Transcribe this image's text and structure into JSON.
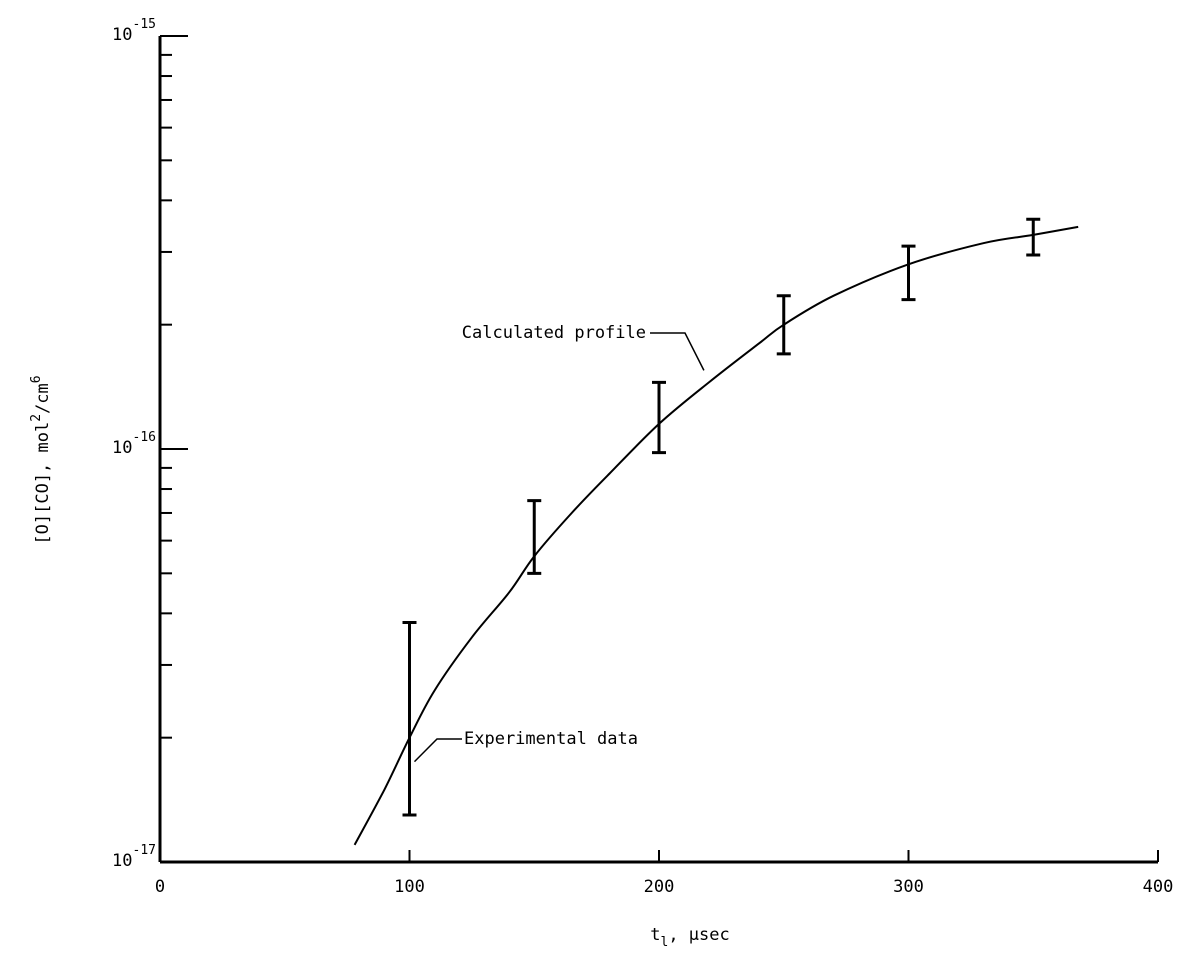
{
  "chart_data": {
    "type": "line",
    "xlabel_main": "t",
    "xlabel_sub": "l",
    "xlabel_rest": ", μsec",
    "ylabel_text": "[O][CO], mol",
    "ylabel_sup1": "2",
    "ylabel_mid": "/cm",
    "ylabel_sup2": "6",
    "xlim": [
      0,
      400
    ],
    "ylim": [
      1e-17,
      1e-15
    ],
    "yscale": "log",
    "x_ticks": [
      0,
      100,
      200,
      300,
      400
    ],
    "x_tick_labels": [
      "0",
      "100",
      "200",
      "300",
      "400"
    ],
    "y_major_ticks": [
      {
        "value": 1e-17,
        "base": "10",
        "exp": "-17"
      },
      {
        "value": 1e-16,
        "base": "10",
        "exp": "-16"
      },
      {
        "value": 1e-15,
        "base": "10",
        "exp": "-15"
      }
    ],
    "grid": false,
    "series": [
      {
        "kind": "curve",
        "x": [
          78,
          90,
          100,
          110,
          125,
          140,
          150,
          165,
          180,
          200,
          220,
          240,
          250,
          270,
          300,
          330,
          350,
          368
        ],
        "y": [
          1.1e-17,
          1.5e-17,
          2e-17,
          2.6e-17,
          3.5e-17,
          4.5e-17,
          5.5e-17,
          7e-17,
          8.7e-17,
          1.15e-16,
          1.45e-16,
          1.8e-16,
          2e-16,
          2.35e-16,
          2.8e-16,
          3.15e-16,
          3.3e-16,
          3.45e-16
        ]
      },
      {
        "kind": "errorbars",
        "x": [
          100,
          150,
          200,
          250,
          300,
          350
        ],
        "y_low": [
          1.3e-17,
          5e-17,
          9.8e-17,
          1.7e-16,
          2.3e-16,
          2.95e-16
        ],
        "y_high": [
          3.8e-17,
          7.5e-17,
          1.45e-16,
          2.35e-16,
          3.1e-16,
          3.6e-16
        ]
      }
    ],
    "annotations": [
      {
        "text": "Calculated profile",
        "x": 218,
        "y": 1.55e-16
      },
      {
        "text": "Experimental data",
        "x": 102,
        "y": 1.75e-17
      }
    ]
  }
}
